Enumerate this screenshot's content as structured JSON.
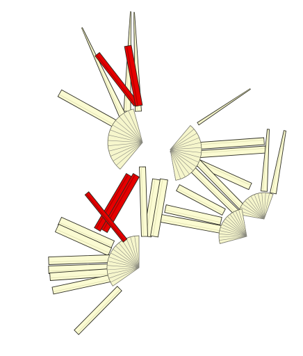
{
  "colors": {
    "background": "#ffffff",
    "rod_fill": "#fbfbd2",
    "rod_stroke": "#2c2c22",
    "highlight_fill": "#e60000",
    "highlight_shade": "#b30000",
    "fan_fill": "#f6f6cc",
    "ray_stroke": "#8a8a80"
  },
  "diagram": {
    "description_visible_text": "",
    "hub_count": 5,
    "highlighted_rod_count": 5
  }
}
